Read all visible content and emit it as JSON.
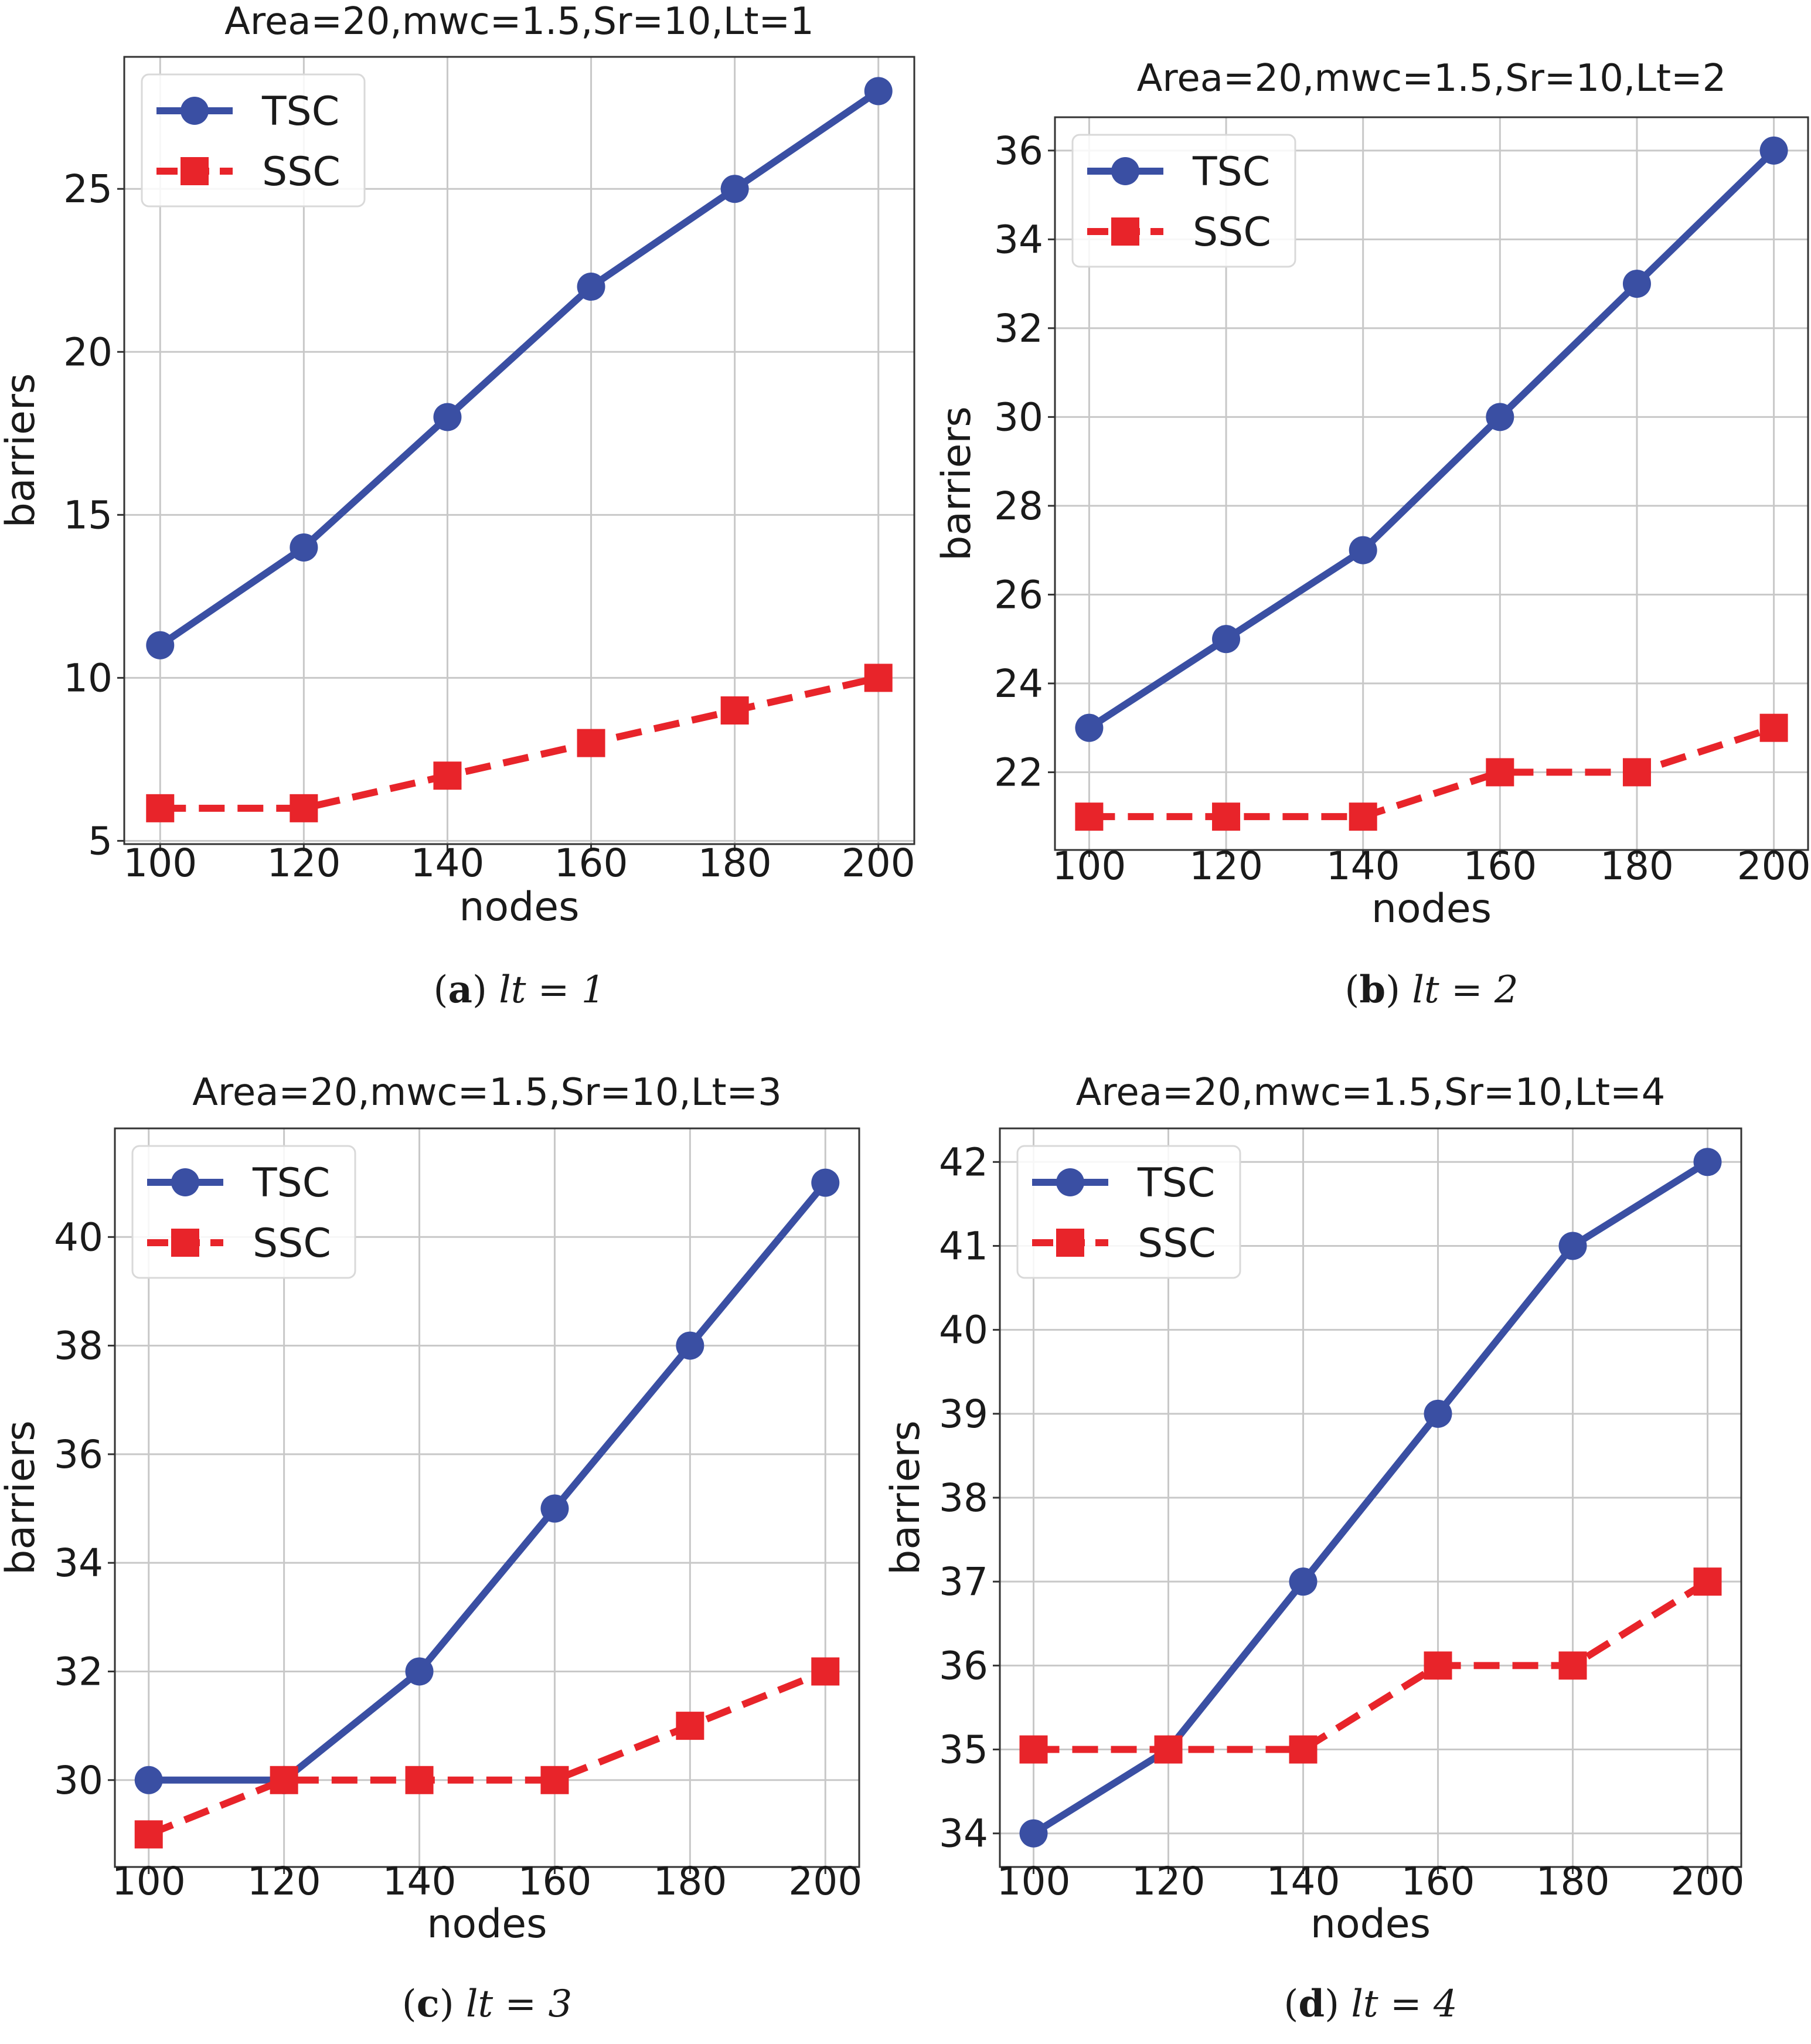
{
  "colors": {
    "tsc": "#3a4fa3",
    "ssc": "#e8242a",
    "grid": "#c8c8c8",
    "axis": "#333333",
    "legend_border": "#d9d9d9"
  },
  "chart_data": [
    {
      "id": "a",
      "type": "line",
      "title": "Area=20,mwc=1.5,Sr=10,Lt=1",
      "xlabel": "nodes",
      "ylabel": "barriers",
      "x": [
        100,
        120,
        140,
        160,
        180,
        200
      ],
      "xlim": [
        95,
        205
      ],
      "ylim": [
        4.9,
        29.05
      ],
      "xticks": [
        100,
        120,
        140,
        160,
        180,
        200
      ],
      "yticks": [
        5,
        10,
        15,
        20,
        25
      ],
      "grid": true,
      "legend_position": "top-left",
      "series": [
        {
          "name": "TSC",
          "style": "solid",
          "marker": "circle",
          "values": [
            11,
            14,
            18,
            22,
            25,
            28
          ]
        },
        {
          "name": "SSC",
          "style": "dashed",
          "marker": "square",
          "values": [
            6,
            6,
            7,
            8,
            9,
            10
          ]
        }
      ],
      "caption": {
        "letter": "a",
        "expr": "lt = 1"
      }
    },
    {
      "id": "b",
      "type": "line",
      "title": "Area=20,mwc=1.5,Sr=10,Lt=2",
      "xlabel": "nodes",
      "ylabel": "barriers",
      "x": [
        100,
        120,
        140,
        160,
        180,
        200
      ],
      "xlim": [
        95,
        205
      ],
      "ylim": [
        20.25,
        36.75
      ],
      "xticks": [
        100,
        120,
        140,
        160,
        180,
        200
      ],
      "yticks": [
        22,
        24,
        26,
        28,
        30,
        32,
        34,
        36
      ],
      "grid": true,
      "legend_position": "top-left",
      "series": [
        {
          "name": "TSC",
          "style": "solid",
          "marker": "circle",
          "values": [
            23,
            25,
            27,
            30,
            33,
            36
          ]
        },
        {
          "name": "SSC",
          "style": "dashed",
          "marker": "square",
          "values": [
            21,
            21,
            21,
            22,
            22,
            23
          ]
        }
      ],
      "caption": {
        "letter": "b",
        "expr": "lt = 2"
      }
    },
    {
      "id": "c",
      "type": "line",
      "title": "Area=20,mwc=1.5,Sr=10,Lt=3",
      "xlabel": "nodes",
      "ylabel": "barriers",
      "x": [
        100,
        120,
        140,
        160,
        180,
        200
      ],
      "xlim": [
        95,
        205
      ],
      "ylim": [
        28.4,
        42.0
      ],
      "xticks": [
        100,
        120,
        140,
        160,
        180,
        200
      ],
      "yticks": [
        30,
        32,
        34,
        36,
        38,
        40
      ],
      "grid": true,
      "legend_position": "top-left",
      "series": [
        {
          "name": "TSC",
          "style": "solid",
          "marker": "circle",
          "values": [
            30,
            30,
            32,
            35,
            38,
            41
          ]
        },
        {
          "name": "SSC",
          "style": "dashed",
          "marker": "square",
          "values": [
            29,
            30,
            30,
            30,
            31,
            32
          ]
        }
      ],
      "caption": {
        "letter": "c",
        "expr": "lt = 3"
      }
    },
    {
      "id": "d",
      "type": "line",
      "title": "Area=20,mwc=1.5,Sr=10,Lt=4",
      "xlabel": "nodes",
      "ylabel": "barriers",
      "x": [
        100,
        120,
        140,
        160,
        180,
        200
      ],
      "xlim": [
        95,
        205
      ],
      "ylim": [
        33.6,
        42.4
      ],
      "xticks": [
        100,
        120,
        140,
        160,
        180,
        200
      ],
      "yticks": [
        34,
        35,
        36,
        37,
        38,
        39,
        40,
        41,
        42
      ],
      "grid": true,
      "legend_position": "top-left",
      "series": [
        {
          "name": "TSC",
          "style": "solid",
          "marker": "circle",
          "values": [
            34,
            35,
            37,
            39,
            41,
            42
          ]
        },
        {
          "name": "SSC",
          "style": "dashed",
          "marker": "square",
          "values": [
            35,
            35,
            35,
            36,
            36,
            37
          ]
        }
      ],
      "caption": {
        "letter": "d",
        "expr": "lt = 4"
      }
    }
  ]
}
